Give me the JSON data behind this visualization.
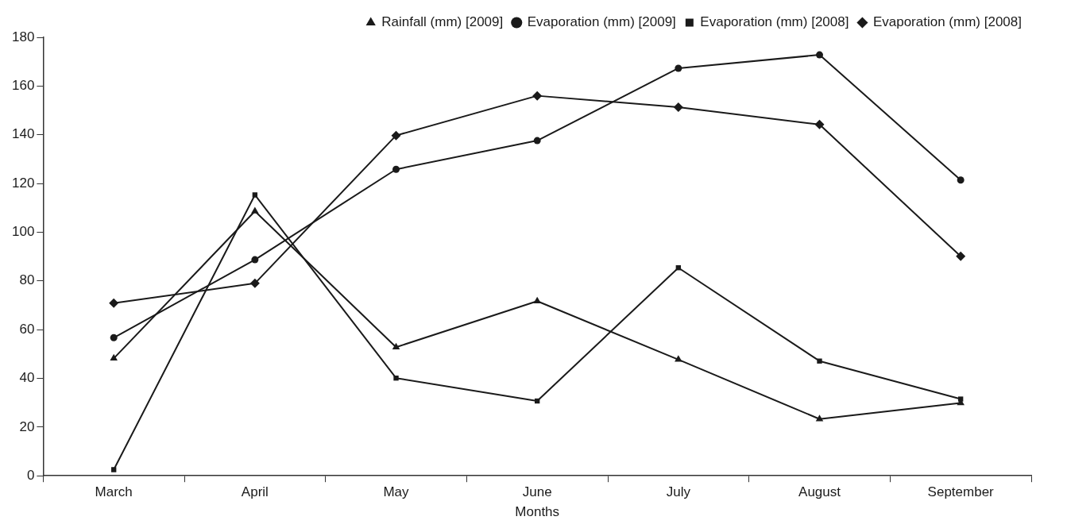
{
  "chart_data": {
    "type": "line",
    "xlabel": "Months",
    "categories": [
      "March",
      "April",
      "May",
      "June",
      "July",
      "August",
      "September"
    ],
    "series": [
      {
        "name": "Rainfall (mm) [2009]",
        "color": "#1a1a1a",
        "marker": "triangle",
        "values": [
          48.2,
          108.6,
          52.8,
          71.7,
          47.7,
          23.3,
          29.9
        ]
      },
      {
        "name": "Evaporation (mm) [2009]",
        "color": "#1a1a1a",
        "marker": "circle",
        "values": [
          56.7,
          88.7,
          125.8,
          137.6,
          167.3,
          172.8,
          121.4
        ]
      },
      {
        "name": "Evaporation (mm) [2008]",
        "color": "#1a1a1a",
        "marker": "square",
        "values": [
          2.5,
          115.3,
          40.1,
          30.7,
          85.4,
          47.1,
          31.5
        ]
      },
      {
        "name": "Evaporation (mm) [2008]",
        "color": "#1a1a1a",
        "marker": "diamond",
        "values": [
          70.9,
          79.0,
          139.7,
          156.0,
          151.3,
          144.2,
          90.1
        ]
      }
    ],
    "ylim": [
      0,
      180
    ],
    "yticks": [
      0,
      20,
      40,
      60,
      80,
      100,
      120,
      140,
      160,
      180
    ],
    "grid": false,
    "legend": "top right"
  }
}
